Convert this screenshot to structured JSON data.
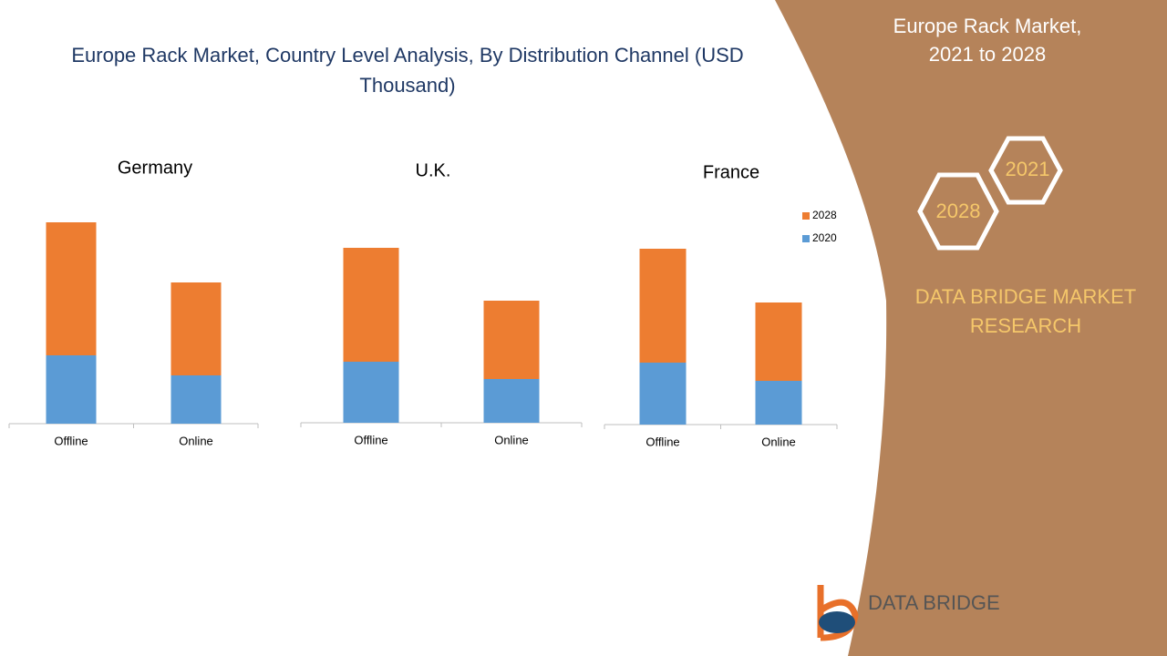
{
  "title": "Europe Rack Market, Country Level Analysis, By Distribution Channel (USD Thousand)",
  "sidebar": {
    "heading": "Europe Rack Market, 2021 to 2028",
    "hex_top": "2021",
    "hex_bottom": "2028",
    "brand": "DATA BRIDGE MARKET RESEARCH",
    "logo": "DATA BRIDGE"
  },
  "chart_data": [
    {
      "type": "bar",
      "stacked": true,
      "title": "Germany",
      "categories": [
        "Offline",
        "Online"
      ],
      "series": [
        {
          "color": "#5b9bd5",
          "values": [
            75,
            53
          ]
        },
        {
          "color": "#ed7d31",
          "values": [
            146,
            102
          ]
        }
      ]
    },
    {
      "type": "bar",
      "stacked": true,
      "title": "U.K.",
      "categories": [
        "Offline",
        "Online"
      ],
      "series": [
        {
          "color": "#5b9bd5",
          "values": [
            67,
            48
          ]
        },
        {
          "color": "#ed7d31",
          "values": [
            125,
            86
          ]
        }
      ]
    },
    {
      "type": "bar",
      "stacked": true,
      "title": "France",
      "categories": [
        "Offline",
        "Online"
      ],
      "legend": "right",
      "series": [
        {
          "name": "2020",
          "color": "#5b9bd5",
          "values": [
            68,
            48
          ]
        },
        {
          "name": "2028",
          "color": "#ed7d31",
          "values": [
            125,
            86
          ]
        }
      ]
    }
  ]
}
